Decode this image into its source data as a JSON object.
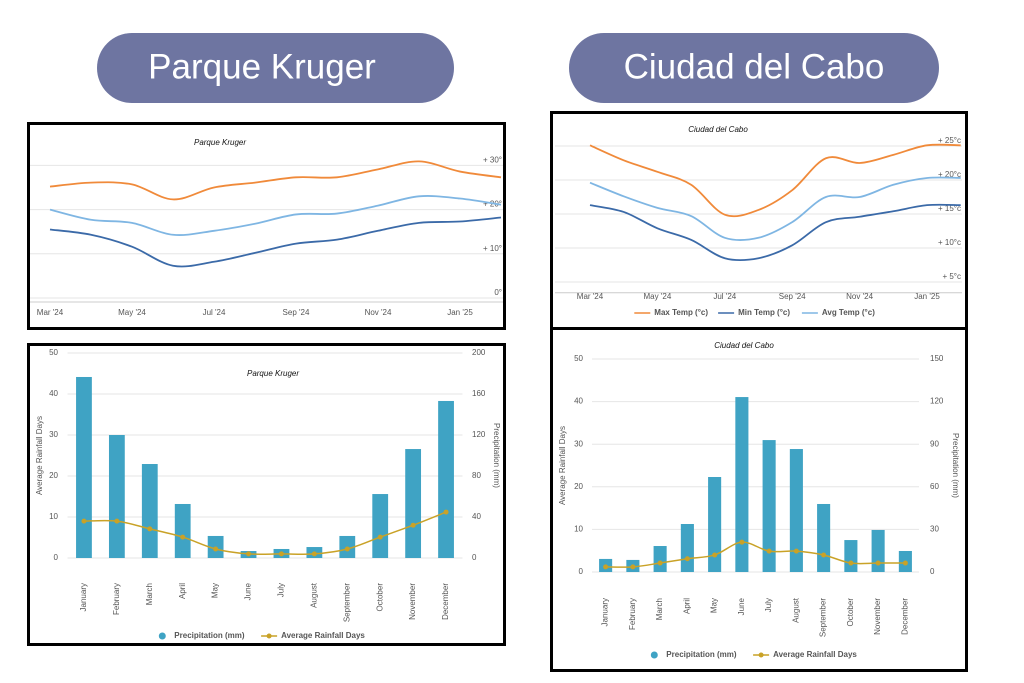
{
  "headers": [
    "Parque Kruger",
    "Ciudad del Cabo"
  ],
  "chart_data": [
    {
      "type": "line",
      "title": "Parque Kruger",
      "categories": [
        "Mar '24",
        null,
        "May '24",
        null,
        "Jul '24",
        null,
        "Sep '24",
        null,
        "Nov '24",
        null,
        "Jan '25",
        null
      ],
      "ylim": [
        0,
        38
      ],
      "yticks": [
        {
          "value": 0,
          "label": "0°"
        },
        {
          "value": 10,
          "label": "+ 10°"
        },
        {
          "value": 20,
          "label": "+ 20°"
        },
        {
          "value": 30,
          "label": "+ 30°"
        }
      ],
      "grid": true,
      "series": [
        {
          "color": "#f08a3a",
          "values": [
            25.2,
            26.1,
            25.7,
            22.3,
            25,
            26.1,
            27.3,
            27.3,
            29.1,
            30.9,
            28.6,
            27.3
          ]
        },
        {
          "color": "#7fb6e3",
          "values": [
            20,
            17.7,
            17,
            14.3,
            15.2,
            16.8,
            18.9,
            19.1,
            20.9,
            23,
            22.5,
            21.1
          ]
        },
        {
          "color": "#3b6aa8",
          "values": [
            15.5,
            14.3,
            11.6,
            7.3,
            8.2,
            10.2,
            12.3,
            13.2,
            15.2,
            17,
            17.3,
            18.2
          ]
        }
      ]
    },
    {
      "type": "bar",
      "title": "Parque Kruger",
      "categories": [
        "January",
        "February",
        "March",
        "April",
        "May",
        "June",
        "July",
        "August",
        "September",
        "October",
        "November",
        "December"
      ],
      "ylabel": "Average Rainfall Days",
      "y2label": "Precipitation (mm)",
      "ylim": [
        0,
        50
      ],
      "yticks": [
        0,
        10,
        20,
        30,
        40,
        50
      ],
      "y2lim": [
        0,
        200
      ],
      "y2ticks": [
        0,
        40,
        80,
        120,
        160,
        200
      ],
      "grid": true,
      "series": [
        {
          "name": "Precipitation (mm)",
          "type": "bar",
          "axis": "y2",
          "color": "#3fa3c4",
          "values": [
            176.6,
            120,
            91.7,
            52.7,
            21.5,
            6.8,
            8.8,
            10.7,
            21.5,
            62.4,
            106.3,
            153.2
          ]
        },
        {
          "name": "Average Rainfall Days",
          "type": "line",
          "color": "#c9a227",
          "values": [
            9,
            9,
            7.1,
            5.1,
            2.2,
            1,
            1,
            1,
            2.2,
            5.1,
            8,
            11.2
          ]
        }
      ]
    },
    {
      "type": "line",
      "title": "Ciudad del Cabo",
      "categories": [
        "Mar '24",
        null,
        "May '24",
        null,
        "Jul '24",
        null,
        "Sep '24",
        null,
        "Nov '24",
        null,
        "Jan '25",
        null
      ],
      "ylim": [
        4,
        30
      ],
      "yticks": [
        {
          "value": 5,
          "label": "+ 5°c"
        },
        {
          "value": 10,
          "label": "+ 10°c"
        },
        {
          "value": 15,
          "label": "+ 15°c"
        },
        {
          "value": 20,
          "label": "+ 20°c"
        },
        {
          "value": 25,
          "label": "+ 25°c"
        }
      ],
      "grid": true,
      "series": [
        {
          "name": "Max Temp (°c)",
          "color": "#f08a3a",
          "values": [
            25.1,
            22.9,
            21.2,
            19.3,
            14.9,
            15.6,
            18.5,
            23.2,
            22.5,
            23.7,
            25.1,
            25.1
          ]
        },
        {
          "name": "Min Temp (°c)",
          "color": "#3b6aa8",
          "values": [
            16.3,
            15.3,
            12.9,
            11.2,
            8.5,
            8.5,
            10.4,
            13.8,
            14.6,
            15.4,
            16.3,
            16.3
          ]
        },
        {
          "name": "Avg Temp (°c)",
          "color": "#7fb6e3",
          "values": [
            19.6,
            17.6,
            15.9,
            14.7,
            11.5,
            11.5,
            13.8,
            17.5,
            17.5,
            19.3,
            20.3,
            20.3
          ]
        }
      ]
    },
    {
      "type": "bar",
      "title": "Ciudad del Cabo",
      "categories": [
        "January",
        "February",
        "March",
        "April",
        "May",
        "June",
        "July",
        "August",
        "September",
        "October",
        "November",
        "December"
      ],
      "ylabel": "Average Rainfall Days",
      "y2label": "Precipitation (mm)",
      "ylim": [
        0,
        50
      ],
      "yticks": [
        0,
        10,
        20,
        30,
        40,
        50
      ],
      "y2lim": [
        0,
        150
      ],
      "y2ticks": [
        0,
        30,
        60,
        90,
        120,
        150
      ],
      "grid": true,
      "series": [
        {
          "name": "Precipitation (mm)",
          "type": "bar",
          "axis": "y2",
          "color": "#3fa3c4",
          "values": [
            9.2,
            8.5,
            18.3,
            33.8,
            66.9,
            123.2,
            92.9,
            86.6,
            47.9,
            22.5,
            29.6,
            14.8
          ]
        },
        {
          "name": "Average Rainfall Days",
          "type": "line",
          "color": "#c9a227",
          "values": [
            1.2,
            1.2,
            2.1,
            3.1,
            4,
            7,
            4.9,
            4.9,
            4,
            2.1,
            2.1,
            2.1
          ]
        }
      ]
    }
  ]
}
